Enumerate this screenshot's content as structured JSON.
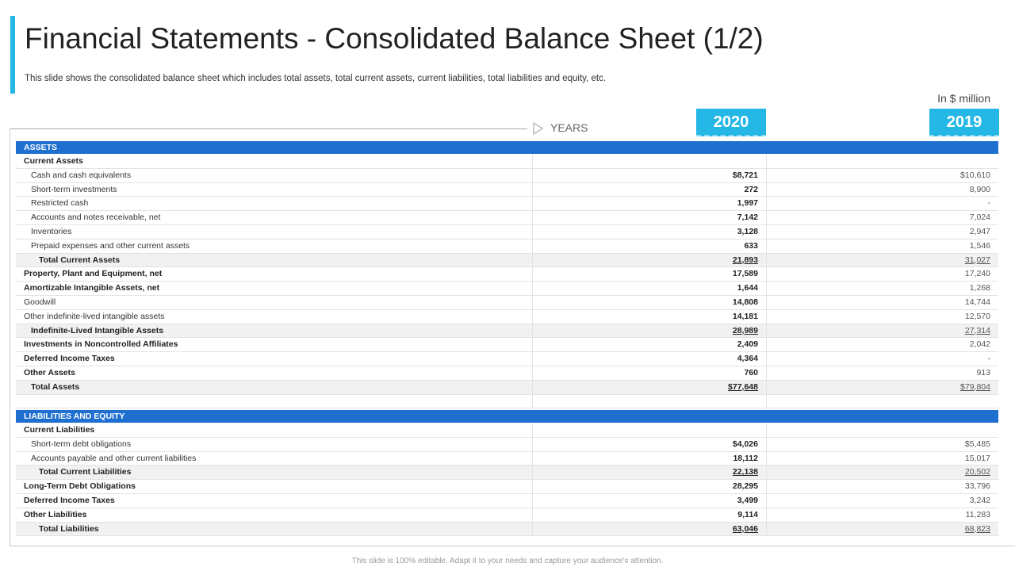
{
  "header": {
    "title": "Financial Statements - Consolidated Balance Sheet (1/2)",
    "subtitle": "This slide shows the consolidated balance sheet which includes total assets, total current assets, current liabilities, total liabilities and equity, etc.",
    "unit": "In $ million",
    "years_label": "YEARS",
    "years": [
      "2020",
      "2019"
    ]
  },
  "assets": {
    "heading": "ASSETS",
    "rows": [
      [
        "Current Assets"
      ],
      [
        "Cash and cash equivalents",
        "$8,721",
        "$10,610"
      ],
      [
        "Short-term investments",
        "272",
        "8,900"
      ],
      [
        "Restricted cash",
        "1,997",
        "-"
      ],
      [
        "Accounts and notes receivable, net",
        "7,142",
        "7,024"
      ],
      [
        "Inventories",
        "3,128",
        "2,947"
      ],
      [
        "Prepaid expenses and other current assets",
        "633",
        "1,546"
      ],
      [
        "Total Current Assets",
        "21,893",
        "31,027"
      ],
      [
        "Property, Plant and Equipment, net",
        "17,589",
        "17,240"
      ],
      [
        "Amortizable Intangible Assets, net",
        "1,644",
        "1,268"
      ],
      [
        "Goodwill",
        "14,808",
        "14,744"
      ],
      [
        "Other indefinite-lived intangible assets",
        "14,181",
        "12,570"
      ],
      [
        "Indefinite-Lived Intangible Assets",
        "28,989",
        "27,314"
      ],
      [
        "Investments in Noncontrolled Affiliates",
        "2,409",
        "2,042"
      ],
      [
        "Deferred Income Taxes",
        "4,364",
        "-"
      ],
      [
        "Other Assets",
        "760",
        "913"
      ],
      [
        "Total Assets",
        "$77,648",
        "$79,804"
      ]
    ]
  },
  "liabilities": {
    "heading": "LIABILITIES AND EQUITY",
    "rows": [
      [
        "Current Liabilities"
      ],
      [
        "Short-term debt obligations",
        "$4,026",
        "$5,485"
      ],
      [
        "Accounts payable and other current liabilities",
        "18,112",
        "15,017"
      ],
      [
        "Total Current Liabilities",
        "22,138",
        "20,502"
      ],
      [
        "Long-Term Debt Obligations",
        "28,295",
        "33,796"
      ],
      [
        "Deferred Income Taxes",
        "3,499",
        "3,242"
      ],
      [
        "Other Liabilities",
        "9,114",
        "11,283"
      ],
      [
        "Total Liabilities",
        "63,046",
        "68,823"
      ]
    ]
  },
  "footer": "This slide is 100% editable. Adapt it to your needs and capture your audience's attention."
}
